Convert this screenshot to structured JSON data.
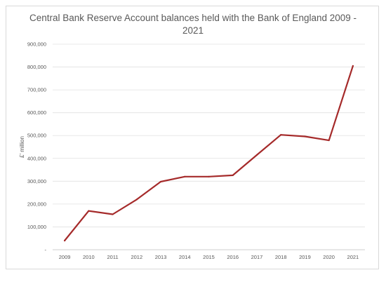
{
  "chart_data": {
    "type": "line",
    "title": "Central Bank Reserve Account balances held with the Bank of England 2009 -\n2021",
    "xlabel": "",
    "ylabel": "£' million",
    "x": [
      "2009",
      "2010",
      "2011",
      "2012",
      "2013",
      "2014",
      "2015",
      "2016",
      "2017",
      "2018",
      "2019",
      "2020",
      "2021"
    ],
    "series": [
      {
        "values": [
          40000,
          170000,
          155000,
          220000,
          298000,
          320000,
          320000,
          326000,
          415000,
          503000,
          496000,
          479000,
          805000
        ],
        "color": "#a52a2a"
      }
    ],
    "ylim": [
      0,
      900000
    ],
    "yticks": [
      0,
      100000,
      200000,
      300000,
      400000,
      500000,
      600000,
      700000,
      800000,
      900000
    ],
    "ytick_labels": [
      "-",
      "100,000",
      "200,000",
      "300,000",
      "400,000",
      "500,000",
      "600,000",
      "700,000",
      "800,000",
      "900,000"
    ],
    "grid": true,
    "legend": "none"
  }
}
